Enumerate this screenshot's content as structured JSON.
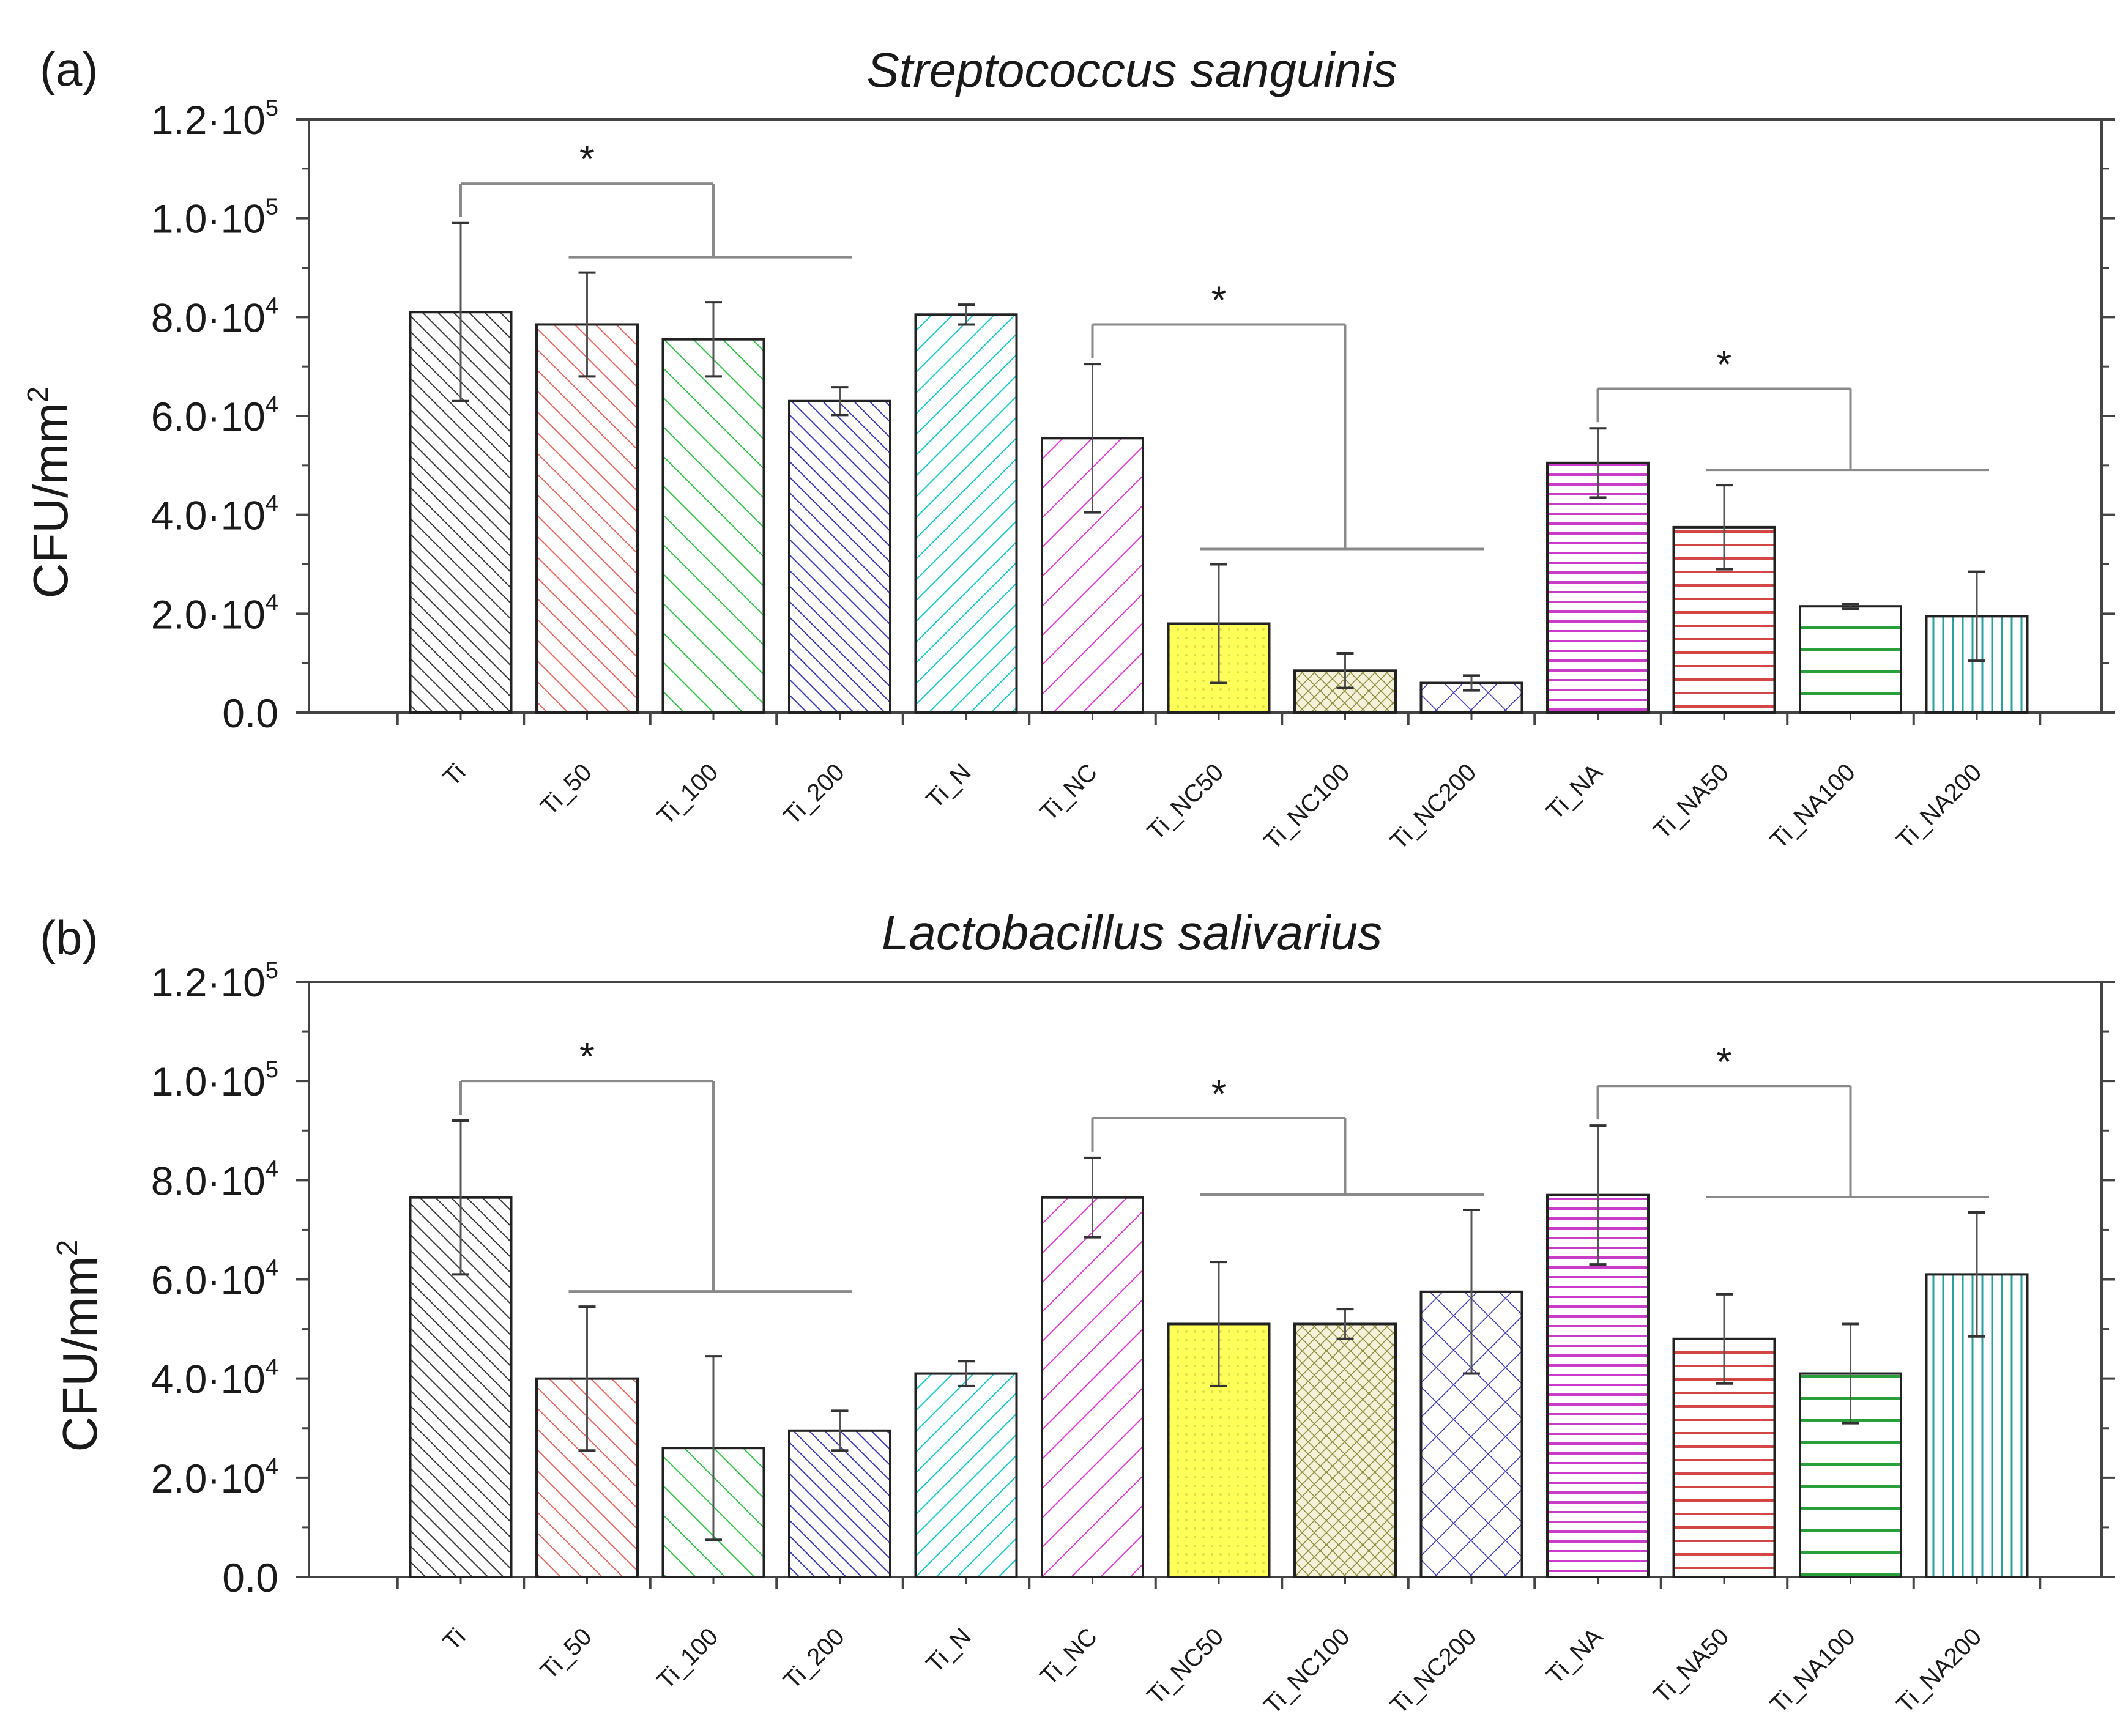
{
  "figure": {
    "y_label": "CFU/mm",
    "y_label_sup": "2"
  },
  "chart_data": [
    {
      "panel": "(a)",
      "type": "bar",
      "title": "Streptococcus sanguinis",
      "ylabel": "CFU/mm²",
      "ylim": [
        0,
        120000
      ],
      "grid": false,
      "legend": "none",
      "y_ticks": [
        {
          "value": 0,
          "mantissa": "0.0",
          "exp": ""
        },
        {
          "value": 20000,
          "mantissa": "2.0·10",
          "exp": "4"
        },
        {
          "value": 40000,
          "mantissa": "4.0·10",
          "exp": "4"
        },
        {
          "value": 60000,
          "mantissa": "6.0·10",
          "exp": "4"
        },
        {
          "value": 80000,
          "mantissa": "8.0·10",
          "exp": "4"
        },
        {
          "value": 100000,
          "mantissa": "1.0·10",
          "exp": "5"
        },
        {
          "value": 120000,
          "mantissa": "1.2·10",
          "exp": "5"
        }
      ],
      "categories": [
        "Ti",
        "Ti_50",
        "Ti_100",
        "Ti_200",
        "Ti_N",
        "Ti_NC",
        "Ti_NC50",
        "Ti_NC100",
        "Ti_NC200",
        "Ti_NA",
        "Ti_NA50",
        "Ti_NA100",
        "Ti_NA200"
      ],
      "values": [
        81000,
        78500,
        75500,
        63000,
        80500,
        55500,
        18000,
        8500,
        6000,
        50500,
        37500,
        21500,
        19500
      ],
      "errors": [
        18000,
        10500,
        7500,
        2800,
        2000,
        15000,
        12000,
        3500,
        1500,
        7000,
        8500,
        500,
        9000
      ],
      "significance": [
        {
          "label": "*",
          "ref": 0,
          "group": [
            1,
            3
          ]
        },
        {
          "label": "*",
          "ref": 5,
          "group": [
            6,
            8
          ]
        },
        {
          "label": "*",
          "ref": 9,
          "group": [
            10,
            12
          ]
        }
      ]
    },
    {
      "panel": "(b)",
      "type": "bar",
      "title": "Lactobacillus salivarius",
      "ylabel": "CFU/mm²",
      "ylim": [
        0,
        120000
      ],
      "grid": false,
      "legend": "none",
      "y_ticks": [
        {
          "value": 0,
          "mantissa": "0.0",
          "exp": ""
        },
        {
          "value": 20000,
          "mantissa": "2.0·10",
          "exp": "4"
        },
        {
          "value": 40000,
          "mantissa": "4.0·10",
          "exp": "4"
        },
        {
          "value": 60000,
          "mantissa": "6.0·10",
          "exp": "4"
        },
        {
          "value": 80000,
          "mantissa": "8.0·10",
          "exp": "4"
        },
        {
          "value": 100000,
          "mantissa": "1.0·10",
          "exp": "5"
        },
        {
          "value": 120000,
          "mantissa": "1.2·10",
          "exp": "5"
        }
      ],
      "categories": [
        "Ti",
        "Ti_50",
        "Ti_100",
        "Ti_200",
        "Ti_N",
        "Ti_NC",
        "Ti_NC50",
        "Ti_NC100",
        "Ti_NC200",
        "Ti_NA",
        "Ti_NA50",
        "Ti_NA100",
        "Ti_NA200"
      ],
      "values": [
        76500,
        40000,
        26000,
        29500,
        41000,
        76500,
        51000,
        51000,
        57500,
        77000,
        48000,
        41000,
        61000
      ],
      "errors": [
        15500,
        14500,
        18500,
        4000,
        2500,
        8000,
        12500,
        3000,
        16500,
        14000,
        9000,
        10000,
        12500
      ],
      "significance": [
        {
          "label": "*",
          "ref": 0,
          "group": [
            1,
            3
          ]
        },
        {
          "label": "*",
          "ref": 5,
          "group": [
            6,
            8
          ]
        },
        {
          "label": "*",
          "ref": 9,
          "group": [
            10,
            12
          ]
        }
      ]
    }
  ],
  "bar_styles": [
    {
      "stroke": "#3a3a3a",
      "fill": "none",
      "pattern": "diag-dense"
    },
    {
      "stroke": "#e8695f",
      "fill": "none",
      "pattern": "diag"
    },
    {
      "stroke": "#33c24a",
      "fill": "none",
      "pattern": "diag-wide"
    },
    {
      "stroke": "#3a3ab4",
      "fill": "none",
      "pattern": "diag-dense"
    },
    {
      "stroke": "#19c9c9",
      "fill": "none",
      "pattern": "back-diag"
    },
    {
      "stroke": "#e03cd4",
      "fill": "none",
      "pattern": "back-diag-wide"
    },
    {
      "stroke": "#f2e36a",
      "fill": "#ffff5a",
      "pattern": "solid-dots"
    },
    {
      "stroke": "#8c8a3c",
      "fill": "none",
      "pattern": "fine-cross"
    },
    {
      "stroke": "#3a3ab4",
      "fill": "none",
      "pattern": "cross"
    },
    {
      "stroke": "#c83cc8",
      "fill": "none",
      "pattern": "horiz-dense"
    },
    {
      "stroke": "#d24646",
      "fill": "none",
      "pattern": "horiz"
    },
    {
      "stroke": "#2aa03c",
      "fill": "none",
      "pattern": "horiz-wide"
    },
    {
      "stroke": "#28a0a0",
      "fill": "none",
      "pattern": "vert"
    }
  ]
}
